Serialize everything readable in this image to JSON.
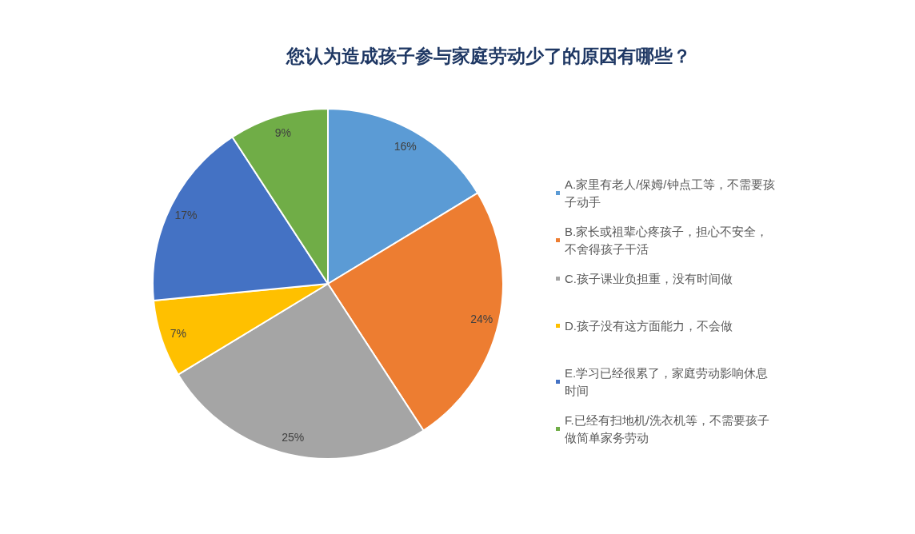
{
  "chart_data": {
    "type": "pie",
    "title": "您认为造成孩子参与家庭劳动少了的原因有哪些？",
    "categories": [
      "A.家里有老人/保姆/钟点工等，不需要孩子动手",
      "B.家长或祖辈心疼孩子，担心不安全，不舍得孩子干活",
      "C.孩子课业负担重，没有时间做",
      "D.孩子没有这方面能力，不会做",
      "E.学习已经很累了，家庭劳动影响休息时间",
      "F.已经有扫地机/洗衣机等，不需要孩子做简单家务劳动"
    ],
    "values": [
      16,
      24,
      25,
      7,
      17,
      9
    ],
    "colors": [
      "#5b9bd5",
      "#ed7d31",
      "#a5a5a5",
      "#ffc000",
      "#4472c4",
      "#70ad47"
    ],
    "value_labels": [
      "16%",
      "24%",
      "25%",
      "7%",
      "17%",
      "9%"
    ],
    "legend": "right"
  }
}
